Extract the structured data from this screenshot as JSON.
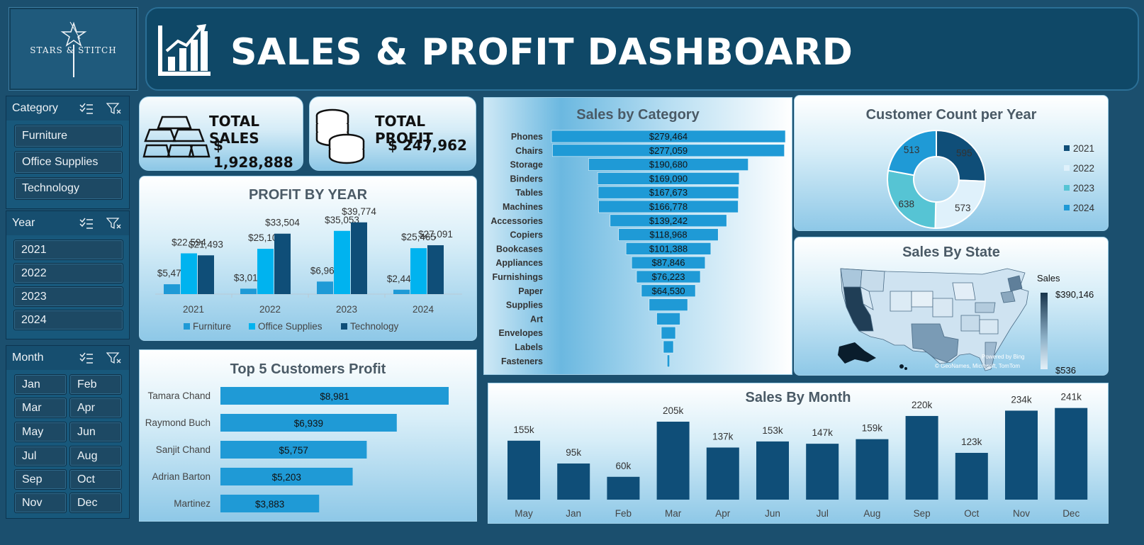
{
  "brand": {
    "logo_text": "STARS & STITCH"
  },
  "header": {
    "title": "SALES & PROFIT DASHBOARD"
  },
  "kpis": {
    "sales_label": "TOTAL SALES",
    "sales_value": "$ 1,928,888",
    "profit_label": "TOTAL PROFIT",
    "profit_value": "$ 247,962"
  },
  "slicers": {
    "category": {
      "label": "Category",
      "items": [
        "Furniture",
        "Office Supplies",
        "Technology"
      ]
    },
    "year": {
      "label": "Year",
      "items": [
        "2021",
        "2022",
        "2023",
        "2024"
      ]
    },
    "month": {
      "label": "Month",
      "items": [
        "Jan",
        "Feb",
        "Mar",
        "Apr",
        "May",
        "Jun",
        "Jul",
        "Aug",
        "Sep",
        "Oct",
        "Nov",
        "Dec"
      ]
    }
  },
  "colors": {
    "dark": "#0f4e78",
    "mid": "#1f9ad6",
    "light": "#00b3ef",
    "pale": "#dff1fb",
    "teal": "#56c4d4",
    "header_bg": "#0f4867"
  },
  "chart_data": [
    {
      "id": "profit_by_year",
      "type": "bar",
      "title": "PROFIT BY YEAR",
      "categories": [
        "2021",
        "2022",
        "2023",
        "2024"
      ],
      "series": [
        {
          "name": "Furniture",
          "values": [
            5470,
            3015,
            6960,
            2444
          ]
        },
        {
          "name": "Office Supplies",
          "values": [
            22594,
            25100,
            35053,
            25465
          ]
        },
        {
          "name": "Technology",
          "values": [
            21493,
            33504,
            39774,
            27091
          ]
        }
      ],
      "labels": [
        [
          "$5,470",
          "$3,015",
          "$6,960",
          "$2,444"
        ],
        [
          "$22,594",
          "$25,100",
          "$35,053",
          "$25,465"
        ],
        [
          "$21,493",
          "$33,504",
          "$39,774",
          "$27,091"
        ]
      ],
      "ylim": [
        0,
        44000
      ],
      "legend": "bottom"
    },
    {
      "id": "top5_customers",
      "type": "bar",
      "orientation": "horizontal",
      "title": "Top 5 Customers Profit",
      "categories": [
        "Tamara Chand",
        "Raymond Buch",
        "Sanjit Chand",
        "Adrian Barton",
        "Martinez"
      ],
      "values": [
        8981,
        6939,
        5757,
        5203,
        3883
      ],
      "labels": [
        "$8,981",
        "$6,939",
        "$5,757",
        "$5,203",
        "$3,883"
      ],
      "xlim": [
        0,
        10000
      ]
    },
    {
      "id": "sales_by_category",
      "type": "bar",
      "orientation": "horizontal-funnel",
      "title": "Sales by Category",
      "categories": [
        "Phones",
        "Chairs",
        "Storage",
        "Binders",
        "Tables",
        "Machines",
        "Accessories",
        "Copiers",
        "Bookcases",
        "Appliances",
        "Furnishings",
        "Paper",
        "Supplies",
        "Art",
        "Envelopes",
        "Labels",
        "Fasteners"
      ],
      "values": [
        279464,
        277059,
        190680,
        169090,
        167673,
        166778,
        139242,
        118968,
        101388,
        87846,
        76223,
        64530,
        46000,
        28000,
        17000,
        12000,
        3000
      ],
      "labels": [
        "$279,464",
        "$277,059",
        "$190,680",
        "$169,090",
        "$167,673",
        "$166,778",
        "$139,242",
        "$118,968",
        "$101,388",
        "$87,846",
        "$76,223",
        "$64,530",
        "",
        "",
        "",
        "",
        ""
      ]
    },
    {
      "id": "customer_count",
      "type": "pie",
      "title": "Customer Count per Year",
      "categories": [
        "2021",
        "2022",
        "2023",
        "2024"
      ],
      "values": [
        595,
        573,
        638,
        513
      ],
      "legend": "right"
    },
    {
      "id": "sales_by_month",
      "type": "bar",
      "title": "Sales By Month",
      "categories": [
        "May",
        "Jan",
        "Feb",
        "Mar",
        "Apr",
        "Jun",
        "Jul",
        "Aug",
        "Sep",
        "Oct",
        "Nov",
        "Dec"
      ],
      "values": [
        155,
        95,
        60,
        205,
        137,
        153,
        147,
        159,
        220,
        123,
        234,
        241
      ],
      "labels": [
        "155k",
        "95k",
        "60k",
        "205k",
        "137k",
        "153k",
        "147k",
        "159k",
        "220k",
        "123k",
        "234k",
        "241k"
      ],
      "ylim": [
        0,
        260
      ]
    }
  ],
  "map": {
    "title": "Sales By State",
    "legend_title": "Sales",
    "legend_max": "$390,146",
    "legend_min": "$536",
    "credit_1": "Powered by Bing",
    "credit_2": "© GeoNames, Microsoft, TomTom"
  }
}
